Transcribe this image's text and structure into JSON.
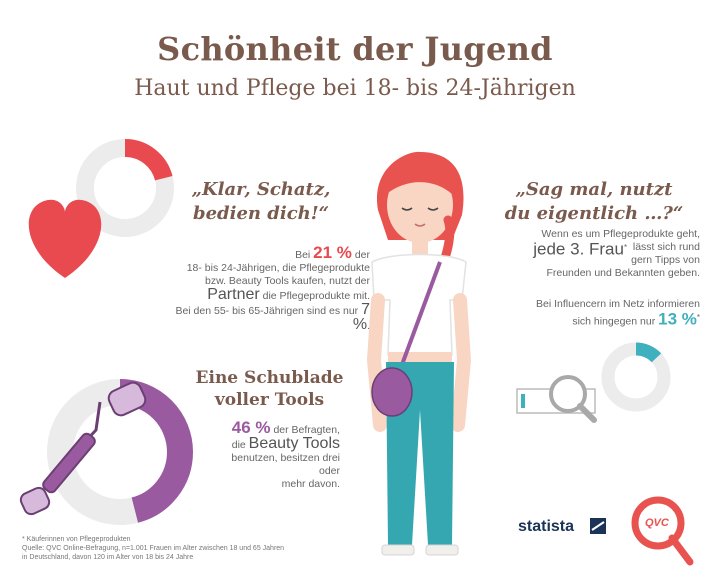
{
  "header": {
    "title": "Schönheit der Jugend",
    "subtitle": "Haut und Pflege bei 18- bis 24-Jährigen"
  },
  "partner_section": {
    "quote": "„Klar, Schatz, bedien dich!“",
    "line1_pre": "Bei ",
    "percent_young": "21 %",
    "line1_post": " der",
    "line2": "18- bis 24-Jährigen, die Pflegeprodukte",
    "line3": "bzw. Beauty Tools kaufen, nutzt der",
    "partner_word": "Partner",
    "line4_post": " die Pflegeprodukte mit.",
    "line5_pre": "Bei den 55- bis 65-Jährigen sind es nur ",
    "percent_old": "7 %",
    "line5_post": ".",
    "ring_fraction": 0.21,
    "colors": {
      "accent": "#e84a4f"
    }
  },
  "friends_section": {
    "quote": "„Sag mal, nutzt du eigentlich …?“",
    "line1": "Wenn es um Pflegeprodukte geht,",
    "big_text": "jede 3. Frau",
    "asterisk": "*",
    "line2_post": "lässt sich rund",
    "line3_post": "gern Tipps von",
    "line4": "Freunden und Bekannten geben.",
    "influencer_line1": "Bei Influencern im Netz informieren",
    "influencer_line2_pre": "sich hingegen nur ",
    "percent_influencer": "13 %",
    "ring_fraction": 0.13,
    "colors": {
      "accent": "#3fb0bd"
    }
  },
  "tools_section": {
    "heading_line1": "Eine Schublade",
    "heading_line2": "voller Tools",
    "percent": "46 %",
    "line1_post": " der Befragten,",
    "line2_pre": "die ",
    "beauty_tools": "Beauty Tools",
    "line3": "benutzen, besitzen drei oder",
    "line4": "mehr davon.",
    "ring_fraction": 0.46,
    "colors": {
      "accent": "#9a5aa0"
    }
  },
  "footnote": {
    "line1": "* Käuferinnen von Pflegeprodukten",
    "line2": "Quelle: QVC Online-Befragung, n=1.001 Frauen im Alter zwischen 18 und 65 Jahren",
    "line3": "in Deutschland, davon 120 im Alter von 18 bis 24 Jahre"
  },
  "logos": {
    "statista": "statista",
    "qvc": "QVC"
  }
}
